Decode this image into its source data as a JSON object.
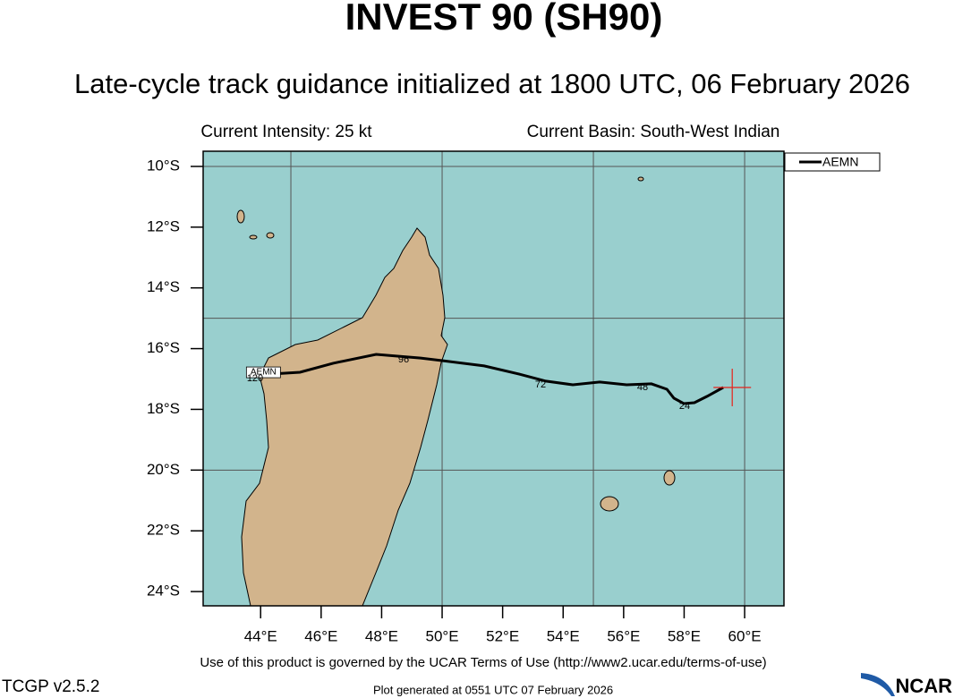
{
  "chart_data": {
    "type": "map",
    "title": "INVEST 90 (SH90)",
    "subtitle": "Late-cycle track guidance initialized at 1800 UTC, 06 February 2026",
    "intensity_text": "Current Intensity: 25 kt",
    "basin_text": "Current Basin: South-West Indian",
    "xlim": [
      42.1,
      61.3
    ],
    "ylim": [
      -24.47,
      -9.5
    ],
    "xticks": [
      {
        "value": 44,
        "label": "44°E"
      },
      {
        "value": 46,
        "label": "46°E"
      },
      {
        "value": 48,
        "label": "48°E"
      },
      {
        "value": 50,
        "label": "50°E"
      },
      {
        "value": 52,
        "label": "52°E"
      },
      {
        "value": 54,
        "label": "54°E"
      },
      {
        "value": 56,
        "label": "56°E"
      },
      {
        "value": 58,
        "label": "58°E"
      },
      {
        "value": 60,
        "label": "60°E"
      }
    ],
    "yticks": [
      {
        "value": -10,
        "label": "10°S"
      },
      {
        "value": -12,
        "label": "12°S"
      },
      {
        "value": -14,
        "label": "14°S"
      },
      {
        "value": -16,
        "label": "16°S"
      },
      {
        "value": -18,
        "label": "18°S"
      },
      {
        "value": -20,
        "label": "20°S"
      },
      {
        "value": -22,
        "label": "22°S"
      },
      {
        "value": -24,
        "label": "24°S"
      }
    ],
    "xgrid": [
      45,
      50,
      55,
      60
    ],
    "ygrid": [
      -10,
      -15,
      -20
    ],
    "series": [
      {
        "name": "AEMN",
        "color": "#000000",
        "x": [
          59.29,
          58.76,
          58.34,
          57.99,
          57.66,
          57.43,
          56.92,
          56.1,
          55.21,
          54.32,
          53.43,
          52.55,
          51.39,
          50.03,
          49.29,
          47.82,
          46.4,
          45.3,
          44.27
        ],
        "values": [
          -17.28,
          -17.57,
          -17.78,
          -17.81,
          -17.63,
          -17.34,
          -17.16,
          -17.19,
          -17.1,
          -17.19,
          -17.07,
          -16.84,
          -16.57,
          -16.4,
          -16.31,
          -16.19,
          -16.48,
          -16.78,
          -16.84
        ]
      }
    ],
    "annotations": [
      "24",
      "48",
      "72",
      "96",
      "120"
    ],
    "current_position": {
      "lon": 59.59,
      "lat": -17.28
    },
    "terms": "Use of this product is governed by the UCAR Terms of Use (http://www2.ucar.edu/terms-of-use)",
    "version": "TCGP v2.5.2",
    "generated": "Plot generated at 0551 UTC   07 February 2026",
    "logo": "NCAR"
  }
}
